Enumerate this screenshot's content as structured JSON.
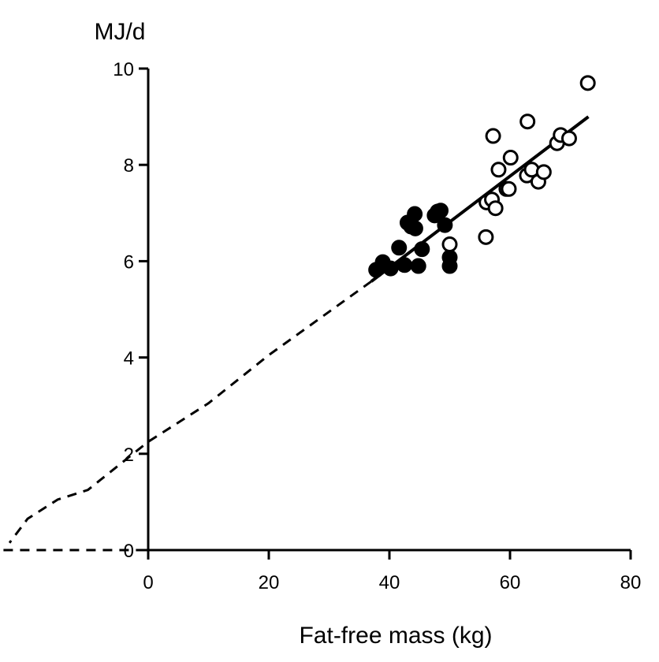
{
  "chart_data": {
    "type": "scatter",
    "title": "",
    "xlabel": "Fat-free mass (kg)",
    "ylabel": "MJ/d",
    "xlim": [
      0,
      80
    ],
    "ylim": [
      0,
      10
    ],
    "x_ticks": [
      0,
      20,
      40,
      60,
      80
    ],
    "y_ticks": [
      0,
      2,
      4,
      6,
      8,
      10
    ],
    "x_tick_labels": [
      "0",
      "20",
      "40",
      "60",
      "80"
    ],
    "y_tick_labels": [
      "0",
      "2",
      "4",
      "6",
      "8",
      "10"
    ],
    "grid": false,
    "series": [
      {
        "marker": "filled-circle",
        "color": "#000000",
        "points": [
          [
            37.8,
            5.82
          ],
          [
            38.9,
            5.98
          ],
          [
            40.2,
            5.85
          ],
          [
            41.6,
            6.28
          ],
          [
            42.5,
            5.92
          ],
          [
            43.0,
            6.8
          ],
          [
            43.6,
            6.72
          ],
          [
            44.2,
            6.98
          ],
          [
            44.3,
            6.68
          ],
          [
            44.8,
            5.9
          ],
          [
            45.4,
            6.25
          ],
          [
            47.5,
            6.95
          ],
          [
            48.0,
            7.03
          ],
          [
            48.5,
            7.05
          ],
          [
            49.2,
            6.75
          ],
          [
            50.0,
            6.08
          ],
          [
            50.0,
            5.9
          ]
        ]
      },
      {
        "marker": "open-circle",
        "color": "#000000",
        "points": [
          [
            50.0,
            6.35
          ],
          [
            56.0,
            6.5
          ],
          [
            56.1,
            7.22
          ],
          [
            57.0,
            7.28
          ],
          [
            57.2,
            8.6
          ],
          [
            57.6,
            7.1
          ],
          [
            58.1,
            7.9
          ],
          [
            59.4,
            7.5
          ],
          [
            59.8,
            7.5
          ],
          [
            60.1,
            8.15
          ],
          [
            62.8,
            7.78
          ],
          [
            62.9,
            8.9
          ],
          [
            63.6,
            7.9
          ],
          [
            64.7,
            7.65
          ],
          [
            65.6,
            7.85
          ],
          [
            67.8,
            8.45
          ],
          [
            68.4,
            8.62
          ],
          [
            69.8,
            8.55
          ],
          [
            72.9,
            9.7
          ]
        ]
      }
    ],
    "fit_line": {
      "style": "solid",
      "x": [
        37,
        73
      ],
      "y": [
        5.58,
        9.0
      ]
    },
    "extrapolation": {
      "style": "dashed",
      "points": [
        [
          37,
          5.58
        ],
        [
          30,
          4.95
        ],
        [
          20,
          4.05
        ],
        [
          10,
          3.05
        ],
        [
          0,
          2.25
        ],
        [
          -5,
          1.75
        ],
        [
          -10,
          1.25
        ],
        [
          -15,
          1.05
        ],
        [
          -20,
          0.65
        ],
        [
          -23,
          0.15
        ]
      ]
    },
    "zero_baseline": {
      "style": "dashed",
      "x": [
        -24,
        0
      ],
      "y": 0
    }
  }
}
